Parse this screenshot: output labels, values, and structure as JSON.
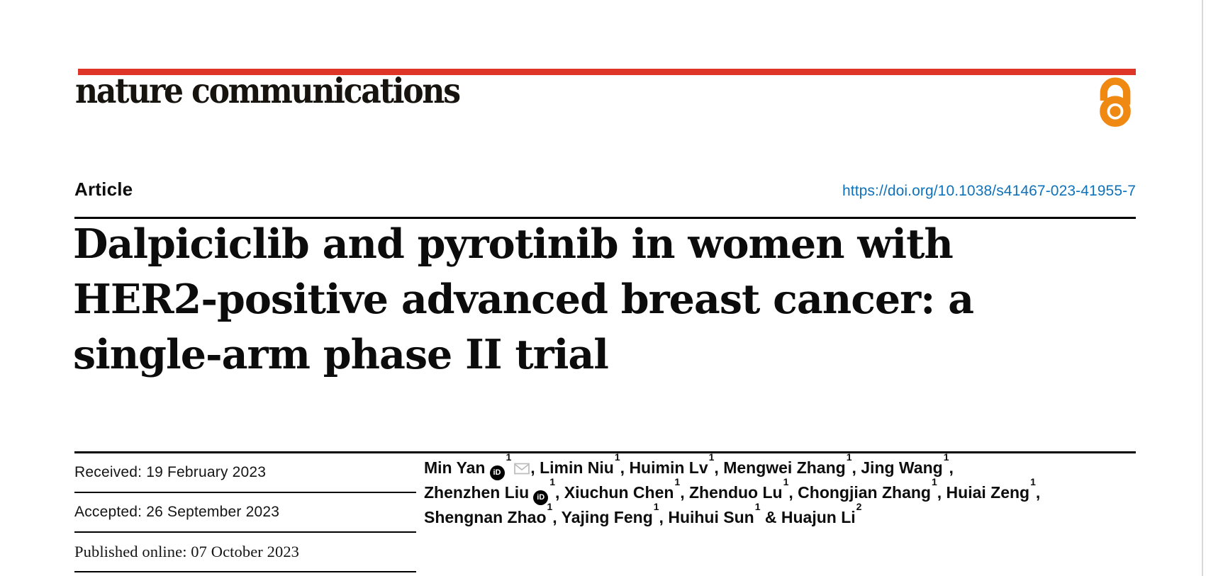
{
  "journal": {
    "name": "nature communications"
  },
  "article": {
    "type": "Article",
    "doi": "https://doi.org/10.1038/s41467-023-41955-7",
    "title": "Dalpiciclib and pyrotinib in women with HER2-positive advanced breast cancer: a single-arm phase II trial",
    "title_lines": [
      "Dalpiciclib and pyrotinib in women with",
      "HER2-positive advanced breast cancer: a",
      "single-arm phase II trial"
    ]
  },
  "history": [
    "Received: 19 February 2023",
    "Accepted: 26 September 2023",
    "Published online: 07 October 2023"
  ],
  "authors": {
    "lines": [
      [
        {
          "name": "Min Yan",
          "sup": "1",
          "orcid": true,
          "email": true,
          "after": ", "
        },
        {
          "name": "Limin Niu",
          "sup": "1",
          "after": ", "
        },
        {
          "name": "Huimin Lv",
          "sup": "1",
          "after": ", "
        },
        {
          "name": "Mengwei Zhang",
          "sup": "1",
          "after": ", "
        },
        {
          "name": "Jing Wang",
          "sup": "1",
          "after": ","
        }
      ],
      [
        {
          "name": "Zhenzhen Liu",
          "sup": "1",
          "orcid": true,
          "after": ", "
        },
        {
          "name": "Xiuchun Chen",
          "sup": "1",
          "after": ", "
        },
        {
          "name": "Zhenduo Lu",
          "sup": "1",
          "after": ", "
        },
        {
          "name": "Chongjian Zhang",
          "sup": "1",
          "after": ", "
        },
        {
          "name": "Huiai Zeng",
          "sup": "1",
          "after": ","
        }
      ],
      [
        {
          "name": "Shengnan Zhao",
          "sup": "1",
          "after": ", "
        },
        {
          "name": "Yajing Feng",
          "sup": "1",
          "after": ", "
        },
        {
          "name": "Huihui Sun",
          "sup": "1",
          "after": " & "
        },
        {
          "name": "Huajun Li",
          "sup": "2",
          "after": ""
        }
      ]
    ]
  },
  "icons": {
    "orcid_text": "iD",
    "open_access": "open-padlock",
    "email": "envelope"
  },
  "colors": {
    "brand_red": "#DF3526",
    "link_blue": "#0F72BA",
    "open_access_orange": "#EF8912",
    "text_black": "#111111",
    "icon_gray": "#BBBBBB"
  }
}
